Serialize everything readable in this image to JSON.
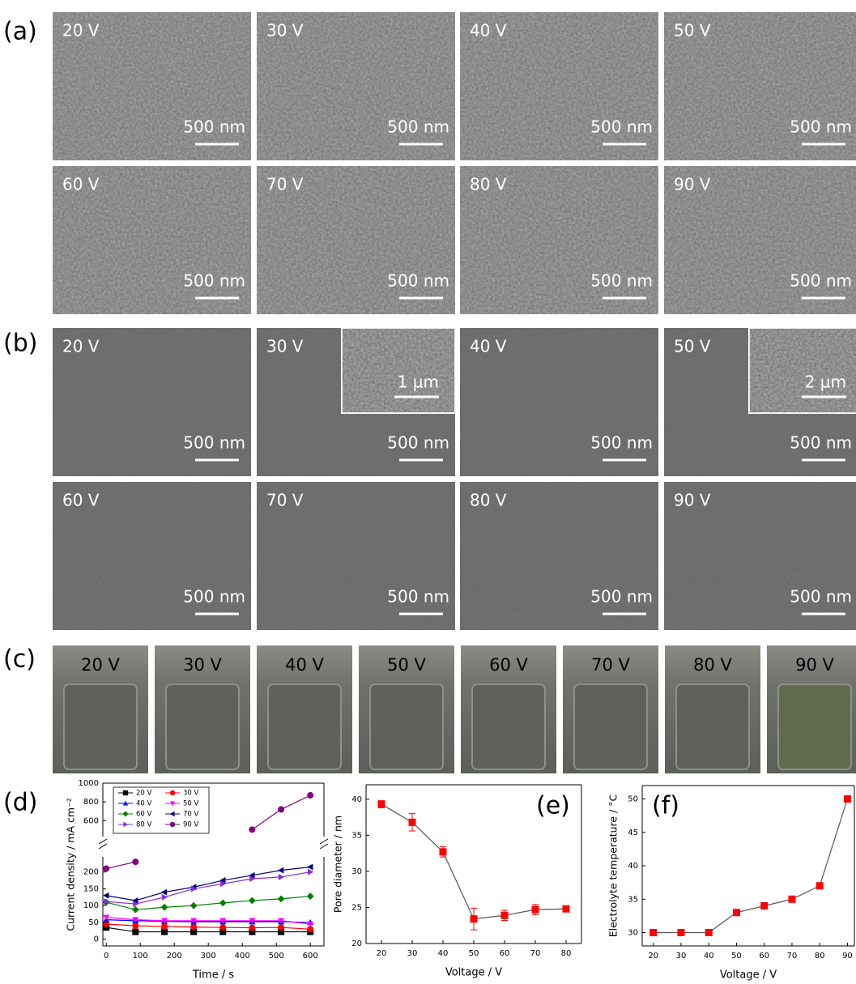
{
  "sem_a": {
    "label": "(a)",
    "images": [
      {
        "voltage": "20 V",
        "scale_bar": "500 nm"
      },
      {
        "voltage": "30 V",
        "scale_bar": "500 nm"
      },
      {
        "voltage": "40 V",
        "scale_bar": "500 nm"
      },
      {
        "voltage": "50 V",
        "scale_bar": "500 nm"
      },
      {
        "voltage": "60 V",
        "scale_bar": "500 nm"
      },
      {
        "voltage": "70 V",
        "scale_bar": "500 nm"
      },
      {
        "voltage": "80 V",
        "scale_bar": "500 nm"
      },
      {
        "voltage": "90 V",
        "scale_bar": "500 nm"
      }
    ]
  },
  "sem_b": {
    "label": "(b)",
    "images": [
      {
        "voltage": "20 V",
        "scale_bar": "500 nm"
      },
      {
        "voltage": "30 V",
        "scale_bar": "500 nm",
        "inset_scale_bar": "1 µm"
      },
      {
        "voltage": "40 V",
        "scale_bar": "500 nm"
      },
      {
        "voltage": "50 V",
        "scale_bar": "500 nm",
        "inset_scale_bar": "2 µm"
      },
      {
        "voltage": "60 V",
        "scale_bar": "500 nm"
      },
      {
        "voltage": "70 V",
        "scale_bar": "500 nm"
      },
      {
        "voltage": "80 V",
        "scale_bar": "500 nm"
      },
      {
        "voltage": "90 V",
        "scale_bar": "500 nm"
      }
    ]
  },
  "beakers": {
    "label": "(c)",
    "images": [
      "20 V",
      "30 V",
      "40 V",
      "50 V",
      "60 V",
      "70 V",
      "80 V",
      "90 V"
    ]
  },
  "chart_data": [
    {
      "type": "line",
      "label": "(d)",
      "x_label": "Time / s",
      "y_label": "Current density / mA cm⁻²",
      "x": [
        0,
        86,
        171,
        257,
        343,
        429,
        514,
        600
      ],
      "xlim": [
        -10,
        640
      ],
      "xticks": [
        0,
        100,
        200,
        300,
        400,
        500,
        600
      ],
      "ylim": [
        -20,
        1000
      ],
      "ybreak": [
        245,
        430
      ],
      "yticks": [
        0,
        50,
        100,
        150,
        200,
        600,
        800,
        1000
      ],
      "series": [
        {
          "name": "20 V",
          "color": "#000000",
          "marker": "square",
          "values": [
            35,
            22,
            22,
            22,
            22,
            22,
            22,
            22
          ]
        },
        {
          "name": "30 V",
          "color": "#ff0000",
          "marker": "circle",
          "values": [
            45,
            40,
            38,
            36,
            35,
            34,
            35,
            30
          ]
        },
        {
          "name": "40 V",
          "color": "#0000ff",
          "marker": "up",
          "values": [
            58,
            55,
            53,
            52,
            52,
            52,
            52,
            50
          ]
        },
        {
          "name": "50 V",
          "color": "#ff00ff",
          "marker": "down",
          "values": [
            65,
            58,
            55,
            55,
            55,
            55,
            55,
            45
          ]
        },
        {
          "name": "60 V",
          "color": "#008000",
          "marker": "diamond",
          "values": [
            110,
            88,
            95,
            100,
            108,
            115,
            120,
            128
          ]
        },
        {
          "name": "70 V",
          "color": "#000080",
          "marker": "left",
          "values": [
            130,
            115,
            140,
            155,
            175,
            190,
            205,
            215
          ]
        },
        {
          "name": "80 V",
          "color": "#8a2be2",
          "marker": "right",
          "values": [
            112,
            105,
            125,
            150,
            165,
            180,
            185,
            200
          ]
        },
        {
          "name": "90 V",
          "color": "#800080",
          "marker": "circle",
          "values": [
            210,
            230,
            null,
            null,
            null,
            505,
            720,
            870
          ]
        }
      ]
    },
    {
      "type": "line",
      "label": "(e)",
      "x_label": "Voltage / V",
      "y_label": "Pore diameter / nm",
      "x": [
        20,
        30,
        40,
        50,
        60,
        70,
        80
      ],
      "values": [
        39.3,
        36.8,
        32.7,
        23.4,
        23.9,
        24.7,
        24.8
      ],
      "errors": [
        0.5,
        1.2,
        0.7,
        1.5,
        0.7,
        0.7,
        0.4
      ],
      "color": "#ff0000",
      "line_color": "#555555",
      "marker": "square",
      "xlim": [
        15,
        85
      ],
      "xticks": [
        20,
        30,
        40,
        50,
        60,
        70,
        80
      ],
      "ylim": [
        20,
        42
      ],
      "yticks": [
        20,
        25,
        30,
        35,
        40
      ]
    },
    {
      "type": "line",
      "label": "(f)",
      "x_label": "Voltage / V",
      "y_label": "Electrolyte temperature / °C",
      "x": [
        20,
        30,
        40,
        50,
        60,
        70,
        80,
        90
      ],
      "values": [
        30,
        30,
        30,
        33,
        34,
        35,
        37,
        50
      ],
      "color": "#ff0000",
      "line_color": "#555555",
      "marker": "square",
      "xlim": [
        16,
        92.5
      ],
      "xticks": [
        20,
        30,
        40,
        50,
        60,
        70,
        80,
        90
      ],
      "ylim": [
        28,
        52
      ],
      "yticks": [
        30,
        35,
        40,
        45,
        50
      ]
    }
  ]
}
